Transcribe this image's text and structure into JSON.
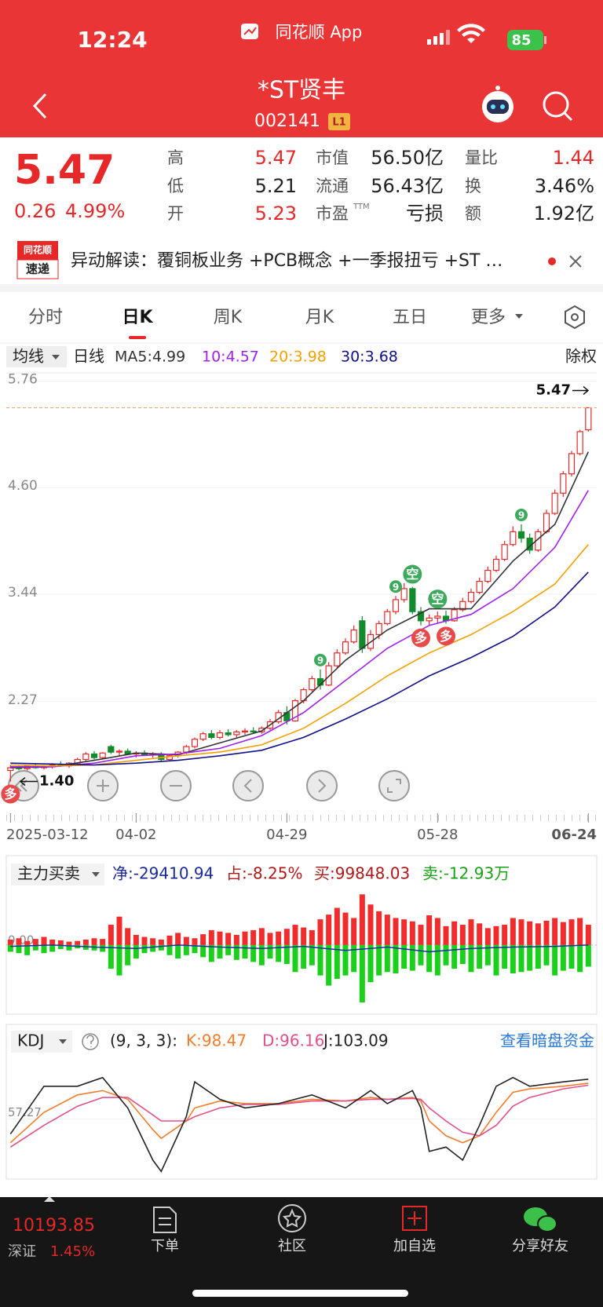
{
  "status_bar": {
    "time": "12:24",
    "app": "同花顺 App",
    "battery": "85"
  },
  "header": {
    "title": "*ST贤丰",
    "code": "002141",
    "badge": "L1"
  },
  "quote": {
    "price": "5.47",
    "change": "0.26",
    "change_pct": "4.99%",
    "fields": [
      {
        "label": "高",
        "value": "5.47",
        "color": "#e62828"
      },
      {
        "label": "低",
        "value": "5.21",
        "color": "#222222"
      },
      {
        "label": "开",
        "value": "5.23",
        "color": "#e62828"
      },
      {
        "label": "市值",
        "value": "56.50亿",
        "color": "#222222"
      },
      {
        "label": "流通",
        "value": "56.43亿",
        "color": "#222222"
      },
      {
        "label": "市盈",
        "sup": "TTM",
        "value": "亏损",
        "color": "#222222"
      },
      {
        "label": "量比",
        "value": "1.44",
        "color": "#e62828"
      },
      {
        "label": "换",
        "value": "3.46%",
        "color": "#222222"
      },
      {
        "label": "额",
        "value": "1.92亿",
        "color": "#222222"
      }
    ]
  },
  "news": {
    "logo_top": "同花顺",
    "logo_bottom": "速递",
    "text": "异动解读：覆铜板业务 +PCB概念 +一季报扭亏 +ST …"
  },
  "tabs": [
    "分时",
    "日K",
    "周K",
    "月K",
    "五日",
    "更多"
  ],
  "chart_data": [
    {
      "type": "candlestick",
      "toolbar": {
        "ma_menu": "均线",
        "period": "日线",
        "adjust": "除权"
      },
      "candles": [
        [
          1.52,
          1.58,
          1.4,
          1.55
        ],
        [
          1.55,
          1.57,
          1.52,
          1.54
        ],
        [
          1.54,
          1.58,
          1.52,
          1.57
        ],
        [
          1.57,
          1.6,
          1.54,
          1.55
        ],
        [
          1.55,
          1.58,
          1.53,
          1.56
        ],
        [
          1.56,
          1.6,
          1.54,
          1.58
        ],
        [
          1.58,
          1.62,
          1.56,
          1.57
        ],
        [
          1.57,
          1.61,
          1.55,
          1.6
        ],
        [
          1.6,
          1.66,
          1.58,
          1.64
        ],
        [
          1.64,
          1.72,
          1.62,
          1.7
        ],
        [
          1.7,
          1.73,
          1.64,
          1.66
        ],
        [
          1.66,
          1.72,
          1.64,
          1.71
        ],
        [
          1.78,
          1.8,
          1.7,
          1.72
        ],
        [
          1.72,
          1.75,
          1.68,
          1.73
        ],
        [
          1.73,
          1.76,
          1.69,
          1.7
        ],
        [
          1.7,
          1.73,
          1.66,
          1.71
        ],
        [
          1.71,
          1.74,
          1.68,
          1.69
        ],
        [
          1.69,
          1.72,
          1.66,
          1.7
        ],
        [
          1.7,
          1.72,
          1.62,
          1.64
        ],
        [
          1.64,
          1.69,
          1.62,
          1.68
        ],
        [
          1.68,
          1.73,
          1.66,
          1.72
        ],
        [
          1.72,
          1.8,
          1.7,
          1.78
        ],
        [
          1.78,
          1.88,
          1.76,
          1.86
        ],
        [
          1.86,
          1.94,
          1.84,
          1.92
        ],
        [
          1.92,
          1.96,
          1.86,
          1.88
        ],
        [
          1.88,
          1.96,
          1.86,
          1.93
        ],
        [
          1.93,
          1.97,
          1.89,
          1.91
        ],
        [
          1.91,
          1.96,
          1.88,
          1.94
        ],
        [
          1.94,
          1.98,
          1.91,
          1.95
        ],
        [
          1.95,
          1.99,
          1.92,
          1.94
        ],
        [
          1.94,
          2.0,
          1.92,
          1.98
        ],
        [
          1.98,
          2.08,
          1.96,
          2.05
        ],
        [
          2.05,
          2.18,
          2.03,
          2.15
        ],
        [
          2.15,
          2.22,
          2.02,
          2.06
        ],
        [
          2.06,
          2.3,
          2.05,
          2.28
        ],
        [
          2.28,
          2.42,
          2.25,
          2.4
        ],
        [
          2.4,
          2.55,
          2.38,
          2.52
        ],
        [
          2.52,
          2.62,
          2.4,
          2.45
        ],
        [
          2.45,
          2.7,
          2.44,
          2.66
        ],
        [
          2.66,
          2.84,
          2.64,
          2.8
        ],
        [
          2.8,
          2.96,
          2.78,
          2.92
        ],
        [
          2.92,
          3.1,
          2.9,
          3.05
        ],
        [
          3.15,
          3.2,
          2.8,
          2.85
        ],
        [
          2.85,
          3.05,
          2.82,
          3.0
        ],
        [
          3.0,
          3.15,
          2.95,
          3.12
        ],
        [
          3.12,
          3.28,
          3.1,
          3.25
        ],
        [
          3.25,
          3.42,
          3.22,
          3.38
        ],
        [
          3.38,
          3.56,
          3.35,
          3.5
        ],
        [
          3.5,
          3.52,
          3.22,
          3.25
        ],
        [
          3.25,
          3.3,
          3.1,
          3.15
        ],
        [
          3.15,
          3.22,
          3.1,
          3.18
        ],
        [
          3.18,
          3.25,
          3.12,
          3.2
        ],
        [
          3.2,
          3.26,
          3.12,
          3.15
        ],
        [
          3.15,
          3.3,
          3.14,
          3.27
        ],
        [
          3.27,
          3.4,
          3.25,
          3.36
        ],
        [
          3.36,
          3.5,
          3.34,
          3.46
        ],
        [
          3.46,
          3.62,
          3.44,
          3.58
        ],
        [
          3.58,
          3.74,
          3.56,
          3.7
        ],
        [
          3.7,
          3.86,
          3.68,
          3.82
        ],
        [
          3.82,
          4.02,
          3.8,
          3.98
        ],
        [
          3.98,
          4.18,
          3.96,
          4.12
        ],
        [
          4.12,
          4.2,
          4.0,
          4.05
        ],
        [
          4.05,
          4.1,
          3.88,
          3.92
        ],
        [
          3.92,
          4.15,
          3.9,
          4.12
        ],
        [
          4.12,
          4.36,
          4.1,
          4.32
        ],
        [
          4.32,
          4.58,
          4.3,
          4.54
        ],
        [
          4.54,
          4.78,
          4.5,
          4.75
        ],
        [
          4.75,
          5.0,
          4.72,
          4.97
        ],
        [
          4.97,
          5.23,
          4.95,
          5.21
        ],
        [
          5.23,
          5.47,
          5.21,
          5.47
        ]
      ],
      "up_color": "#e62828",
      "down_color": "#138a2c",
      "series": [
        {
          "name": "MA5:4.99",
          "color": "#333333",
          "x": [
            0,
            5,
            10,
            15,
            20,
            25,
            30,
            35,
            40,
            45,
            50,
            55,
            60,
            65,
            69
          ],
          "values": [
            1.55,
            1.56,
            1.63,
            1.71,
            1.69,
            1.82,
            1.95,
            2.28,
            2.72,
            3.05,
            3.28,
            3.28,
            3.8,
            4.2,
            4.99
          ]
        },
        {
          "name": "10:4.57",
          "color": "#a020f0",
          "x": [
            0,
            5,
            10,
            15,
            20,
            25,
            30,
            35,
            40,
            45,
            50,
            55,
            60,
            65,
            69
          ],
          "values": [
            1.56,
            1.56,
            1.6,
            1.68,
            1.7,
            1.76,
            1.9,
            2.15,
            2.5,
            2.85,
            3.1,
            3.22,
            3.5,
            3.95,
            4.57
          ]
        },
        {
          "name": "20:3.98",
          "color": "#f5a000",
          "x": [
            0,
            5,
            10,
            15,
            20,
            25,
            30,
            35,
            40,
            45,
            50,
            55,
            60,
            65,
            69
          ],
          "values": [
            1.58,
            1.57,
            1.58,
            1.63,
            1.68,
            1.72,
            1.8,
            1.98,
            2.25,
            2.55,
            2.8,
            3.0,
            3.25,
            3.55,
            3.98
          ]
        },
        {
          "name": "30:3.68",
          "color": "#10108a",
          "x": [
            0,
            5,
            10,
            15,
            20,
            25,
            30,
            35,
            40,
            45,
            50,
            55,
            60,
            65,
            69
          ],
          "values": [
            1.6,
            1.59,
            1.58,
            1.6,
            1.63,
            1.68,
            1.74,
            1.88,
            2.08,
            2.3,
            2.55,
            2.75,
            2.98,
            3.3,
            3.68
          ]
        }
      ],
      "xlim": [
        -0.5,
        70
      ],
      "ylim": [
        1.02,
        5.85
      ],
      "xticks": [
        {
          "value": 0,
          "label": "2025-03-12"
        },
        {
          "value": 15,
          "label": "04-02"
        },
        {
          "value": 33,
          "label": "04-29"
        },
        {
          "value": 51,
          "label": "05-28"
        },
        {
          "value": 69,
          "label": "06-24"
        }
      ],
      "yticks": [
        5.76,
        {
          "value": 4.6,
          "label": "4.60"
        },
        3.44,
        2.27
      ],
      "high_marker": 5.47,
      "low_marker": {
        "value": 1.4,
        "label": "1.40"
      },
      "signals": [
        {
          "x": 0,
          "label": "多",
          "color": "#e84a4a",
          "side": "below"
        },
        {
          "x": 37,
          "label": "9",
          "color": "#3caa5c",
          "side": "above"
        },
        {
          "x": 46,
          "label": "9",
          "color": "#3caa5c",
          "side": "above"
        },
        {
          "x": 48,
          "label": "空",
          "color": "#3caa5c",
          "side": "above"
        },
        {
          "x": 51,
          "label": "空",
          "color": "#3caa5c",
          "side": "above"
        },
        {
          "x": 49,
          "label": "多",
          "color": "#e84a4a",
          "side": "below"
        },
        {
          "x": 52,
          "label": "多",
          "color": "#e84a4a",
          "side": "below"
        },
        {
          "x": 61,
          "label": "9",
          "color": "#3caa5c",
          "side": "above"
        }
      ]
    },
    {
      "type": "bar",
      "title": "主力买卖",
      "stats": [
        {
          "text": "净:-29410.94",
          "color": "#1a2a9a"
        },
        {
          "text": "占:-8.25%",
          "color": "#b01818"
        },
        {
          "text": "买:99848.03",
          "color": "#b01818"
        },
        {
          "text": "卖:-12.93万",
          "color": "#18a018"
        }
      ],
      "series": [
        {
          "color": "#f02c2c",
          "values": [
            8,
            10,
            6,
            9,
            12,
            8,
            7,
            5,
            6,
            8,
            10,
            9,
            30,
            42,
            25,
            15,
            12,
            10,
            8,
            14,
            18,
            12,
            10,
            16,
            22,
            20,
            18,
            15,
            20,
            22,
            25,
            18,
            20,
            24,
            30,
            26,
            22,
            38,
            45,
            55,
            48,
            40,
            75,
            60,
            50,
            45,
            40,
            38,
            35,
            30,
            44,
            40,
            28,
            35,
            30,
            38,
            32,
            25,
            28,
            30,
            40,
            38,
            35,
            32,
            36,
            40,
            34,
            38,
            40,
            30
          ]
        },
        {
          "color": "#1ad01a",
          "values": [
            -10,
            -12,
            -15,
            -8,
            -12,
            -10,
            -6,
            -8,
            -5,
            -7,
            -8,
            -10,
            -35,
            -45,
            -30,
            -20,
            -12,
            -10,
            -8,
            -15,
            -20,
            -15,
            -12,
            -18,
            -25,
            -20,
            -15,
            -22,
            -20,
            -25,
            -30,
            -20,
            -25,
            -28,
            -40,
            -35,
            -30,
            -45,
            -60,
            -50,
            -45,
            -40,
            -85,
            -55,
            -45,
            -40,
            -42,
            -35,
            -38,
            -30,
            -40,
            -45,
            -30,
            -35,
            -28,
            -40,
            -35,
            -30,
            -45,
            -35,
            -42,
            -40,
            -38,
            -35,
            -30,
            -45,
            -38,
            -35,
            -40,
            -32
          ]
        },
        {
          "color": "#1f2fa0",
          "x": [
            0,
            5,
            10,
            15,
            20,
            25,
            30,
            35,
            40,
            45,
            50,
            55,
            60,
            65,
            69
          ],
          "values": [
            -2,
            0,
            -3,
            -5,
            0,
            -3,
            -5,
            -2,
            -8,
            -3,
            -10,
            -5,
            -3,
            -2,
            0
          ]
        }
      ],
      "xlim": [
        -0.5,
        70
      ],
      "ylim": [
        -100,
        80
      ],
      "yticks": [
        {
          "value": 0,
          "label": "0.00"
        }
      ]
    },
    {
      "type": "line",
      "title": "KDJ",
      "params": "(9, 3, 3):",
      "link": "查看暗盘资金",
      "x": [
        0,
        4,
        8,
        11,
        14,
        17,
        18,
        21,
        22,
        25,
        28,
        32,
        36,
        40,
        43,
        45,
        48,
        49,
        50,
        52,
        54,
        56,
        58,
        60,
        62,
        66,
        69
      ],
      "series": [
        {
          "name": "K:98.47",
          "color": "#f47c2c",
          "values": [
            30,
            65,
            85,
            90,
            80,
            45,
            35,
            55,
            70,
            78,
            75,
            75,
            80,
            78,
            82,
            80,
            82,
            78,
            55,
            38,
            30,
            38,
            65,
            88,
            92,
            95,
            98.47
          ]
        },
        {
          "name": "D:96.16",
          "color": "#e0508a",
          "values": [
            25,
            50,
            72,
            82,
            82,
            62,
            55,
            55,
            60,
            70,
            74,
            74,
            78,
            78,
            80,
            80,
            81,
            80,
            70,
            55,
            42,
            38,
            50,
            72,
            82,
            92,
            96.16
          ]
        },
        {
          "name": "J:103.09",
          "color": "#222222",
          "values": [
            40,
            95,
            95,
            105,
            70,
            10,
            -3,
            60,
            100,
            80,
            70,
            75,
            85,
            70,
            90,
            75,
            90,
            70,
            20,
            25,
            10,
            50,
            95,
            105,
            95,
            100,
            103.09
          ]
        }
      ],
      "xlim": [
        -0.5,
        70
      ],
      "ylim": [
        -10,
        130
      ],
      "yticks": [
        57.27
      ]
    }
  ],
  "bottom_nav": {
    "index_value": "10193.85",
    "index_name": "深证",
    "index_change": "1.45%",
    "items": [
      "下单",
      "社区",
      "加自选",
      "分享好友"
    ]
  }
}
